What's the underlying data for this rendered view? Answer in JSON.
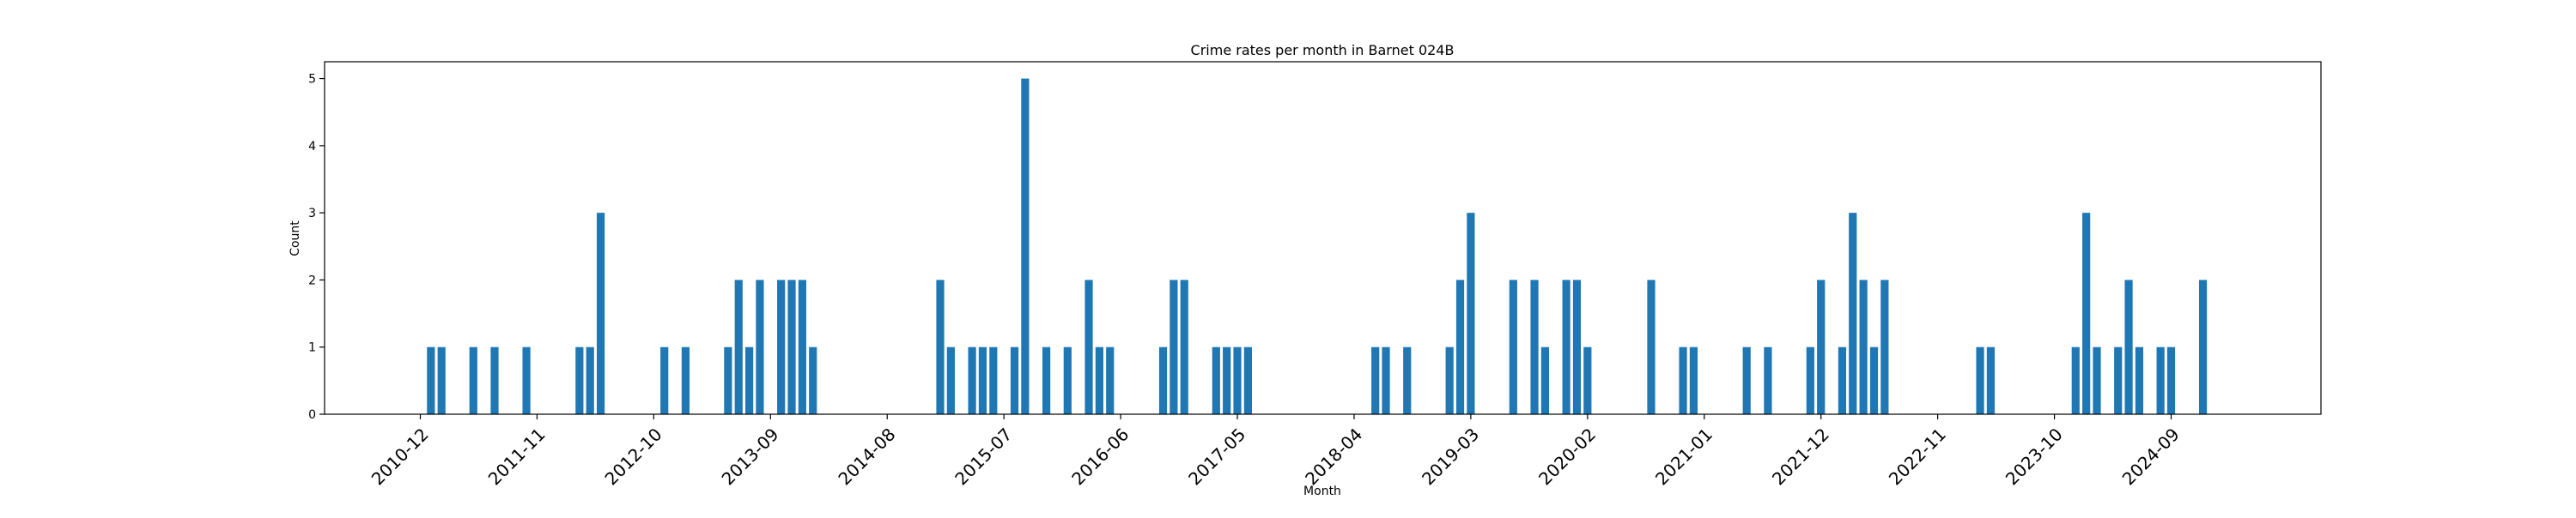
{
  "chart_data": {
    "type": "bar",
    "title": "Crime rates per month in Barnet 024B",
    "xlabel": "Month",
    "ylabel": "Count",
    "ylim": [
      0,
      5.25
    ],
    "grid": false,
    "bar_color": "#1f77b4",
    "x_ticks": [
      "2010-12",
      "2011-11",
      "2012-10",
      "2013-09",
      "2014-08",
      "2015-07",
      "2016-06",
      "2017-05",
      "2018-04",
      "2019-03",
      "2020-02",
      "2021-01",
      "2021-12",
      "2022-11",
      "2023-10",
      "2024-09"
    ],
    "y_ticks": [
      0,
      1,
      2,
      3,
      4,
      5
    ],
    "x": [
      "2011-01",
      "2011-02",
      "2011-05",
      "2011-07",
      "2011-10",
      "2012-03",
      "2012-04",
      "2012-05",
      "2012-11",
      "2013-01",
      "2013-05",
      "2013-06",
      "2013-07",
      "2013-08",
      "2013-10",
      "2013-11",
      "2013-12",
      "2014-01",
      "2015-01",
      "2015-02",
      "2015-04",
      "2015-05",
      "2015-06",
      "2015-08",
      "2015-09",
      "2015-11",
      "2016-01",
      "2016-03",
      "2016-04",
      "2016-05",
      "2016-10",
      "2016-11",
      "2016-12",
      "2017-03",
      "2017-04",
      "2017-05",
      "2017-06",
      "2018-06",
      "2018-07",
      "2018-09",
      "2019-01",
      "2019-02",
      "2019-03",
      "2019-07",
      "2019-09",
      "2019-10",
      "2019-12",
      "2020-01",
      "2020-02",
      "2020-08",
      "2020-11",
      "2020-12",
      "2021-05",
      "2021-07",
      "2021-11",
      "2021-12",
      "2022-02",
      "2022-03",
      "2022-04",
      "2022-05",
      "2022-06",
      "2023-03",
      "2023-04",
      "2023-12",
      "2024-01",
      "2024-02",
      "2024-04",
      "2024-05",
      "2024-06",
      "2024-08",
      "2024-09",
      "2024-12"
    ],
    "values": [
      1,
      1,
      1,
      1,
      1,
      1,
      1,
      3,
      1,
      1,
      1,
      2,
      1,
      2,
      2,
      2,
      2,
      1,
      2,
      1,
      1,
      1,
      1,
      1,
      5,
      1,
      1,
      2,
      1,
      1,
      1,
      2,
      2,
      1,
      1,
      1,
      1,
      1,
      1,
      1,
      1,
      2,
      3,
      2,
      2,
      1,
      2,
      2,
      1,
      2,
      1,
      1,
      1,
      1,
      1,
      2,
      1,
      3,
      2,
      1,
      2,
      1,
      1,
      1,
      3,
      1,
      1,
      2,
      1,
      1,
      1,
      2
    ]
  }
}
